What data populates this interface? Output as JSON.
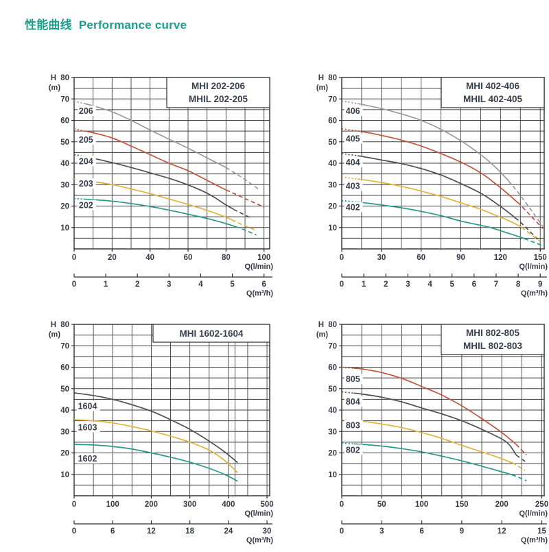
{
  "header": {
    "title_zh": "性能曲线",
    "title_en": "Performance curve",
    "accent_color": "#1b9e8d"
  },
  "colors": {
    "grid": "#3d3d3d",
    "frame": "#2e2e2e",
    "text": "#343a45",
    "label_text": "#39404e",
    "curve_gray": "#9a9a9a",
    "curve_red": "#c2523c",
    "curve_dark": "#4d4f52",
    "curve_yellow": "#e3b23d",
    "curve_teal": "#27998a"
  },
  "chart_data": [
    {
      "type": "line",
      "title_lines": [
        "MHI  202-206",
        "MHIL 202-205"
      ],
      "y_axis": {
        "symbol": "H",
        "unit": "(m)",
        "max": 80,
        "grid_step": 5,
        "label_step": 10
      },
      "x_axis": {
        "label": "Q(l/min)",
        "ticks": [
          0,
          20,
          40,
          60,
          80,
          100
        ],
        "grid_step": 10,
        "domain_max": 103
      },
      "x_axis2": {
        "label": "Q(m³/h)",
        "ticks": [
          0,
          1,
          2,
          3,
          4,
          5,
          6
        ]
      },
      "extra_gridlines": [],
      "series": [
        {
          "name": "206",
          "color": "#9a9a9a",
          "dot_until": 5,
          "dash_from": 80,
          "label_at": [
            2.5,
            64.5
          ],
          "points": [
            [
              0,
              69
            ],
            [
              10,
              66.8
            ],
            [
              20,
              64
            ],
            [
              30,
              60
            ],
            [
              40,
              55.5
            ],
            [
              50,
              51.2
            ],
            [
              60,
              47
            ],
            [
              70,
              42.5
            ],
            [
              80,
              38
            ],
            [
              88,
              33.5
            ],
            [
              97,
              28
            ]
          ]
        },
        {
          "name": "205",
          "color": "#c2523c",
          "dot_until": 5,
          "dash_from": 80,
          "label_at": [
            2.5,
            51
          ],
          "points": [
            [
              0,
              56
            ],
            [
              10,
              54.2
            ],
            [
              20,
              51.8
            ],
            [
              30,
              48
            ],
            [
              40,
              44
            ],
            [
              50,
              40
            ],
            [
              60,
              36.5
            ],
            [
              70,
              32
            ],
            [
              80,
              27.5
            ],
            [
              90,
              23.5
            ],
            [
              100,
              19.5
            ]
          ]
        },
        {
          "name": "204",
          "color": "#4d4f52",
          "dot_until": 5,
          "dash_from": 84,
          "label_at": [
            2.5,
            41
          ],
          "points": [
            [
              0,
              44
            ],
            [
              10,
              42.3
            ],
            [
              20,
              40.3
            ],
            [
              30,
              38
            ],
            [
              40,
              35.5
            ],
            [
              55,
              31.5
            ],
            [
              70,
              26
            ],
            [
              80,
              20.5
            ],
            [
              85,
              18
            ],
            [
              93,
              14.5
            ]
          ]
        },
        {
          "name": "203",
          "color": "#e3b23d",
          "dot_until": 5,
          "dash_from": 83,
          "label_at": [
            2.5,
            30.5
          ],
          "points": [
            [
              0,
              32.5
            ],
            [
              10,
              31.4
            ],
            [
              20,
              30
            ],
            [
              30,
              28
            ],
            [
              40,
              25.8
            ],
            [
              50,
              23.3
            ],
            [
              60,
              20.8
            ],
            [
              70,
              18
            ],
            [
              80,
              14.8
            ],
            [
              88,
              11.5
            ],
            [
              95,
              9
            ]
          ]
        },
        {
          "name": "202",
          "color": "#27998a",
          "dot_until": 5,
          "dash_from": 85,
          "label_at": [
            2.5,
            20.5
          ],
          "points": [
            [
              0,
              23.5
            ],
            [
              10,
              23
            ],
            [
              20,
              22.3
            ],
            [
              30,
              21.2
            ],
            [
              40,
              19.8
            ],
            [
              50,
              18.1
            ],
            [
              60,
              16.2
            ],
            [
              70,
              14.2
            ],
            [
              80,
              11.8
            ],
            [
              88,
              9.5
            ],
            [
              96,
              6.5
            ]
          ]
        }
      ]
    },
    {
      "type": "line",
      "title_lines": [
        "MHI  402-406",
        "MHIL 402-405"
      ],
      "y_axis": {
        "symbol": "H",
        "unit": "(m)",
        "max": 80,
        "grid_step": 5,
        "label_step": 10
      },
      "x_axis": {
        "label": "Q(l/min)",
        "ticks": [
          0,
          30,
          60,
          90,
          120,
          150
        ],
        "grid_step": 15,
        "domain_max": 153
      },
      "x_axis2": {
        "label": "Q(m³/h)",
        "ticks": [
          0,
          1,
          2,
          3,
          4,
          5,
          6,
          7,
          8,
          9
        ]
      },
      "extra_gridlines": [],
      "series": [
        {
          "name": "406",
          "color": "#9a9a9a",
          "dot_until": 12,
          "dash_from": 126,
          "label_at": [
            3,
            64.5
          ],
          "points": [
            [
              0,
              69
            ],
            [
              15,
              67.5
            ],
            [
              30,
              65.5
            ],
            [
              45,
              63
            ],
            [
              60,
              60
            ],
            [
              75,
              55.8
            ],
            [
              90,
              50.5
            ],
            [
              105,
              44
            ],
            [
              115,
              38.8
            ],
            [
              125,
              32.5
            ],
            [
              135,
              25
            ],
            [
              152,
              10.5
            ]
          ]
        },
        {
          "name": "405",
          "color": "#c2523c",
          "dot_until": 12,
          "dash_from": 133,
          "label_at": [
            3,
            51.5
          ],
          "points": [
            [
              0,
              56
            ],
            [
              15,
              54.8
            ],
            [
              30,
              53
            ],
            [
              45,
              50.8
            ],
            [
              60,
              48
            ],
            [
              75,
              44.5
            ],
            [
              90,
              40.5
            ],
            [
              105,
              35.5
            ],
            [
              115,
              31
            ],
            [
              125,
              26
            ],
            [
              135,
              20.5
            ],
            [
              152,
              9.5
            ]
          ]
        },
        {
          "name": "404",
          "color": "#4d4f52",
          "dot_until": 12,
          "dash_from": 131,
          "label_at": [
            3,
            40.5
          ],
          "points": [
            [
              0,
              44.5
            ],
            [
              15,
              43.2
            ],
            [
              30,
              41.5
            ],
            [
              45,
              39.8
            ],
            [
              60,
              37.5
            ],
            [
              75,
              34.5
            ],
            [
              90,
              30.5
            ],
            [
              105,
              26
            ],
            [
              115,
              22
            ],
            [
              125,
              17.5
            ],
            [
              135,
              12.5
            ],
            [
              148,
              4.5
            ]
          ]
        },
        {
          "name": "403",
          "color": "#e3b23d",
          "dot_until": 12,
          "dash_from": 136,
          "label_at": [
            3,
            29.5
          ],
          "points": [
            [
              0,
              33.5
            ],
            [
              15,
              32.4
            ],
            [
              30,
              31
            ],
            [
              45,
              29.2
            ],
            [
              60,
              27
            ],
            [
              75,
              24.5
            ],
            [
              90,
              21.5
            ],
            [
              105,
              18.5
            ],
            [
              115,
              16
            ],
            [
              125,
              13.5
            ],
            [
              135,
              10.5
            ],
            [
              150,
              3.5
            ]
          ]
        },
        {
          "name": "402",
          "color": "#27998a",
          "dot_until": 12,
          "dash_from": 138,
          "label_at": [
            3,
            19.5
          ],
          "points": [
            [
              0,
              22.5
            ],
            [
              15,
              21.7
            ],
            [
              30,
              20.5
            ],
            [
              45,
              19.2
            ],
            [
              60,
              17.5
            ],
            [
              75,
              15.5
            ],
            [
              90,
              13
            ],
            [
              105,
              11
            ],
            [
              115,
              9.5
            ],
            [
              125,
              7.5
            ],
            [
              135,
              5.5
            ],
            [
              152,
              1.5
            ]
          ]
        }
      ]
    },
    {
      "type": "line",
      "title_lines": [
        "MHI 1602-1604"
      ],
      "y_axis": {
        "symbol": "H",
        "unit": "(m)",
        "max": 80,
        "grid_step": 5,
        "label_step": 10
      },
      "x_axis": {
        "label": "Q(l/min)",
        "ticks": [
          0,
          100,
          200,
          300,
          400,
          500
        ],
        "grid_step": 50,
        "domain_max": 507
      },
      "x_axis2": {
        "label": "Q(m³/h)",
        "ticks": [
          0,
          6,
          12,
          18,
          24,
          30
        ]
      },
      "extra_gridlines": [
        417
      ],
      "series": [
        {
          "name": "1604",
          "color": "#4d4f52",
          "dot_until": 0,
          "dash_from": 0,
          "label_at": [
            10,
            42
          ],
          "points": [
            [
              0,
              48
            ],
            [
              50,
              46.8
            ],
            [
              100,
              45
            ],
            [
              150,
              42.5
            ],
            [
              200,
              39.5
            ],
            [
              250,
              35.5
            ],
            [
              300,
              31
            ],
            [
              350,
              25.5
            ],
            [
              390,
              20.5
            ],
            [
              424,
              15.5
            ]
          ]
        },
        {
          "name": "1603",
          "color": "#e3b23d",
          "dot_until": 0,
          "dash_from": 0,
          "label_at": [
            10,
            32
          ],
          "points": [
            [
              0,
              35.5
            ],
            [
              50,
              35
            ],
            [
              100,
              34
            ],
            [
              150,
              32.3
            ],
            [
              200,
              30.3
            ],
            [
              250,
              27.8
            ],
            [
              300,
              25
            ],
            [
              350,
              21.3
            ],
            [
              390,
              16.5
            ],
            [
              424,
              10.8
            ]
          ]
        },
        {
          "name": "1602",
          "color": "#27998a",
          "dot_until": 0,
          "dash_from": 0,
          "label_at": [
            10,
            17.5
          ],
          "points": [
            [
              0,
              24
            ],
            [
              50,
              23.7
            ],
            [
              100,
              23
            ],
            [
              150,
              21.8
            ],
            [
              200,
              20
            ],
            [
              250,
              18
            ],
            [
              300,
              15.7
            ],
            [
              350,
              12.8
            ],
            [
              390,
              10
            ],
            [
              424,
              6.8
            ]
          ]
        }
      ]
    },
    {
      "type": "line",
      "title_lines": [
        "MHI  802-805",
        "MHIL 802-803"
      ],
      "y_axis": {
        "symbol": "H",
        "unit": "(m)",
        "max": 80,
        "grid_step": 5,
        "label_step": 10
      },
      "x_axis": {
        "label": "Q(l/min)",
        "ticks": [
          0,
          50,
          100,
          150,
          200,
          250
        ],
        "grid_step": 25,
        "domain_max": 253
      },
      "x_axis2": {
        "label": "Q(m³/h)",
        "ticks": [
          0,
          3,
          6,
          9,
          12,
          15
        ]
      },
      "extra_gridlines": [],
      "series": [
        {
          "name": "805",
          "color": "#c2523c",
          "dot_until": 15,
          "dash_from": 218,
          "label_at": [
            5,
            54.5
          ],
          "points": [
            [
              0,
              60
            ],
            [
              25,
              59.2
            ],
            [
              50,
              57.5
            ],
            [
              75,
              54.8
            ],
            [
              100,
              51
            ],
            [
              125,
              47
            ],
            [
              150,
              42
            ],
            [
              175,
              36
            ],
            [
              200,
              29.5
            ],
            [
              218,
              24
            ],
            [
              231,
              19
            ]
          ]
        },
        {
          "name": "804",
          "color": "#4d4f52",
          "dot_until": 15,
          "dash_from": 218,
          "label_at": [
            5,
            44
          ],
          "points": [
            [
              0,
              48.5
            ],
            [
              25,
              47.5
            ],
            [
              50,
              46
            ],
            [
              75,
              43.8
            ],
            [
              100,
              41
            ],
            [
              125,
              38.2
            ],
            [
              150,
              35
            ],
            [
              175,
              31
            ],
            [
              200,
              26.5
            ],
            [
              210,
              23.5
            ],
            [
              218,
              19
            ],
            [
              231,
              15.5
            ]
          ]
        },
        {
          "name": "803",
          "color": "#e3b23d",
          "dot_until": 15,
          "dash_from": 213,
          "label_at": [
            5,
            33
          ],
          "points": [
            [
              0,
              35.5
            ],
            [
              25,
              34.8
            ],
            [
              50,
              33.5
            ],
            [
              75,
              31.8
            ],
            [
              100,
              29.5
            ],
            [
              125,
              26.8
            ],
            [
              150,
              23.5
            ],
            [
              175,
              20.5
            ],
            [
              200,
              17.3
            ],
            [
              215,
              15
            ],
            [
              229,
              11.8
            ]
          ]
        },
        {
          "name": "802",
          "color": "#27998a",
          "dot_until": 15,
          "dash_from": 214,
          "label_at": [
            5,
            21.5
          ],
          "points": [
            [
              0,
              24.5
            ],
            [
              25,
              24
            ],
            [
              50,
              23.2
            ],
            [
              75,
              22
            ],
            [
              100,
              20.5
            ],
            [
              125,
              18.5
            ],
            [
              150,
              16.3
            ],
            [
              175,
              13.8
            ],
            [
              200,
              11.2
            ],
            [
              215,
              9.5
            ],
            [
              231,
              7
            ]
          ]
        }
      ]
    }
  ]
}
